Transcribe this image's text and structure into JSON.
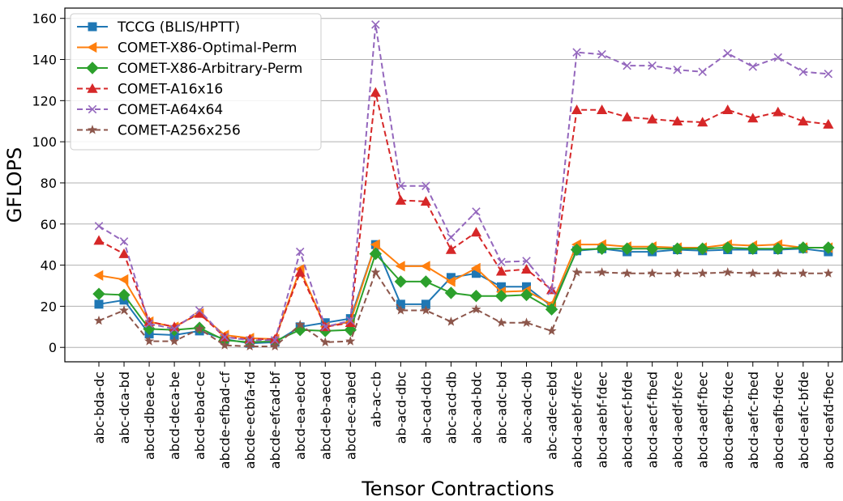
{
  "chart_data": {
    "type": "line",
    "xlabel": "Tensor Contractions",
    "ylabel": "GFLOPS",
    "ylim": [
      -7,
      165
    ],
    "yticks": [
      0,
      20,
      40,
      60,
      80,
      100,
      120,
      140,
      160
    ],
    "grid": "horizontal",
    "legend_position": "top-left",
    "categories": [
      "abc-bda-dc",
      "abc-dca-bd",
      "abcd-dbea-ec",
      "abcd-deca-be",
      "abcd-ebad-ce",
      "abcde-efbad-cf",
      "abcde-ecbfa-fd",
      "abcde-efcad-bf",
      "abcd-ea-ebcd",
      "abcd-eb-aecd",
      "abcd-ec-abed",
      "ab-ac-cb",
      "ab-acd-dbc",
      "ab-cad-dcb",
      "abc-acd-db",
      "abc-ad-bdc",
      "abc-adc-bd",
      "abc-adc-db",
      "abc-adec-ebd",
      "abcd-aebf-dfce",
      "abcd-aebf-fdec",
      "abcd-aecf-bfde",
      "abcd-aecf-fbed",
      "abcd-aedf-bfce",
      "abcd-aedf-fbec",
      "abcd-aefb-fdce",
      "abcd-aefc-fbed",
      "abcd-eafb-fdec",
      "abcd-eafc-bfde",
      "abcd-eafd-fbec"
    ],
    "series": [
      {
        "name": "TCCG (BLIS/HPTT)",
        "color": "#1f77b4",
        "linestyle": "solid",
        "marker": "square",
        "values": [
          21,
          23,
          6.5,
          6,
          8,
          4,
          2,
          2.5,
          10,
          12,
          14,
          50,
          21,
          21,
          34,
          36,
          29.5,
          29.5,
          20,
          47,
          48,
          46.5,
          46.5,
          47.5,
          47,
          47.5,
          47.5,
          47.5,
          48,
          46.5
        ]
      },
      {
        "name": "COMET-X86-Optimal-Perm",
        "color": "#ff7f0e",
        "linestyle": "solid",
        "marker": "triangle-left",
        "values": [
          35,
          33,
          12.5,
          10,
          16.5,
          6,
          4.5,
          4,
          38,
          10,
          12.5,
          50,
          39.5,
          39.5,
          32,
          38.5,
          27,
          27.5,
          21,
          50,
          50,
          49,
          49,
          48.5,
          48.5,
          50,
          49.5,
          50,
          48.5,
          48.5
        ]
      },
      {
        "name": "COMET-X86-Arbitrary-Perm",
        "color": "#2ca02c",
        "linestyle": "solid",
        "marker": "diamond",
        "values": [
          26,
          25.5,
          9,
          8.5,
          9.5,
          3.5,
          2.5,
          3,
          8.5,
          8,
          8.5,
          45.5,
          32,
          32,
          26.5,
          25,
          25,
          25.5,
          18.5,
          47.5,
          48,
          48,
          48,
          48,
          48,
          48.5,
          48,
          48,
          48.5,
          48.5
        ]
      },
      {
        "name": "COMET-A16x16",
        "color": "#d62728",
        "linestyle": "dashed",
        "marker": "triangle-up",
        "values": [
          52,
          45.5,
          12.5,
          10,
          16.5,
          5,
          4,
          4,
          36.5,
          10,
          12,
          124,
          71.5,
          71,
          47.5,
          56,
          37,
          38,
          28,
          115.5,
          115.5,
          112,
          111,
          110,
          109.5,
          115.5,
          111.5,
          114.5,
          110,
          108.5
        ]
      },
      {
        "name": "COMET-A64x64",
        "color": "#9467bd",
        "linestyle": "dashed",
        "marker": "x",
        "values": [
          59,
          51.5,
          11.5,
          9,
          18,
          5,
          3.5,
          3.5,
          46.5,
          10,
          13,
          157,
          78.5,
          78.5,
          53.5,
          66,
          41.5,
          42,
          27.5,
          143.5,
          142.5,
          137,
          137,
          135,
          134,
          143,
          136.5,
          141,
          134,
          133
        ]
      },
      {
        "name": "COMET-A256x256",
        "color": "#8c564b",
        "linestyle": "dashed",
        "marker": "star",
        "values": [
          13,
          18,
          3,
          3,
          9,
          1,
          0.5,
          0.5,
          11,
          2.5,
          3,
          36.5,
          18,
          18,
          12.5,
          18.5,
          12,
          12,
          8,
          36.5,
          36.5,
          36,
          36,
          36,
          36,
          36.5,
          36,
          36,
          36,
          36
        ]
      }
    ]
  }
}
